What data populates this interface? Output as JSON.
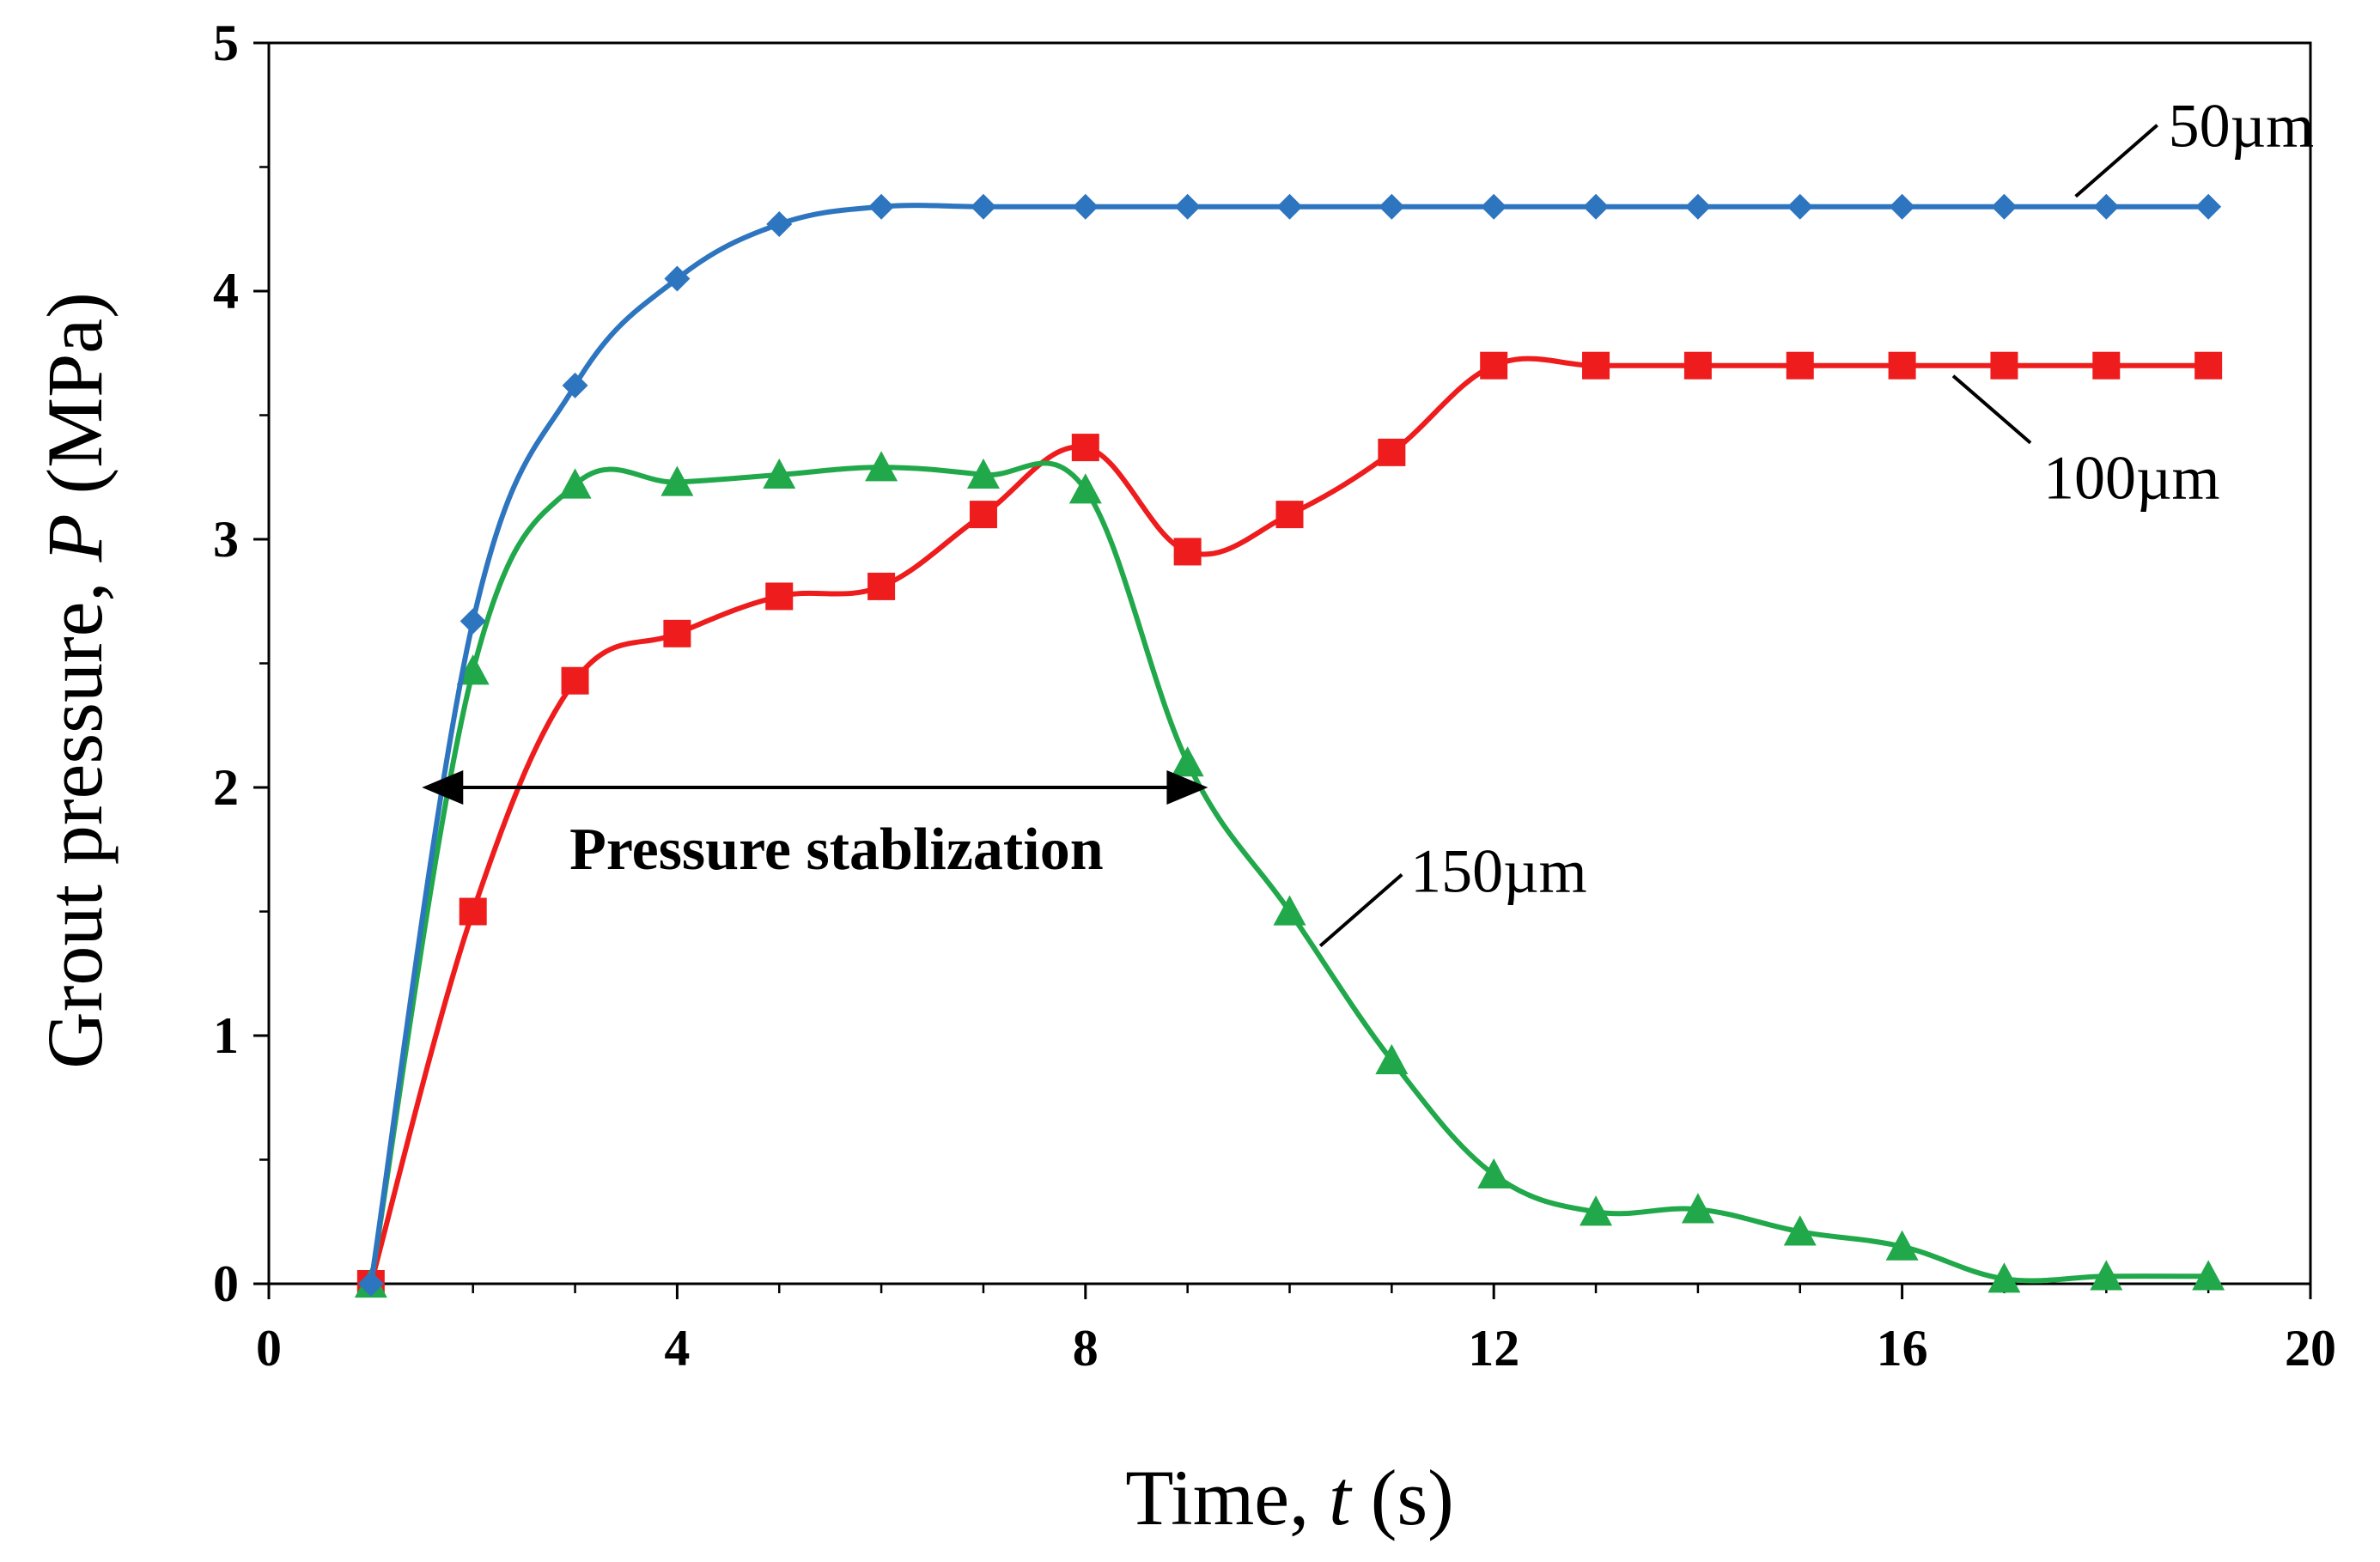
{
  "chart_data": {
    "type": "line",
    "title": "",
    "xlabel_parts": [
      "Time, ",
      "t",
      " (s)"
    ],
    "ylabel_parts": [
      "Grout pressure, ",
      "P",
      " (MPa)"
    ],
    "xlim": [
      0,
      20
    ],
    "ylim": [
      0,
      5
    ],
    "xticks": [
      0,
      4,
      8,
      12,
      16,
      20
    ],
    "yticks": [
      0,
      1,
      2,
      3,
      4,
      5
    ],
    "xtick_labels": [
      "0",
      "4",
      "8",
      "12",
      "16",
      "20"
    ],
    "ytick_labels": [
      "0",
      "1",
      "2",
      "3",
      "4",
      "5"
    ],
    "grid": false,
    "legend": "inline labels",
    "series": [
      {
        "name": "50µm",
        "color": "#2e75c0",
        "marker": "diamond",
        "x": [
          1,
          2,
          3,
          4,
          5,
          6,
          7,
          8,
          9,
          10,
          11,
          12,
          13,
          14,
          15,
          16,
          17,
          18,
          19
        ],
        "values": [
          0,
          2.67,
          3.62,
          4.05,
          4.27,
          4.34,
          4.34,
          4.34,
          4.34,
          4.34,
          4.34,
          4.34,
          4.34,
          4.34,
          4.34,
          4.34,
          4.34,
          4.34,
          4.34
        ]
      },
      {
        "name": "100µm",
        "color": "#ee1c1c",
        "marker": "square",
        "x": [
          1,
          2,
          3,
          4,
          5,
          6,
          7,
          8,
          9,
          10,
          11,
          12,
          13,
          14,
          15,
          16,
          17,
          18,
          19
        ],
        "values": [
          0,
          1.5,
          2.43,
          2.62,
          2.77,
          2.81,
          3.1,
          3.37,
          2.95,
          3.1,
          3.35,
          3.7,
          3.7,
          3.7,
          3.7,
          3.7,
          3.7,
          3.7,
          3.7
        ]
      },
      {
        "name": "150µm",
        "color": "#21a84a",
        "marker": "triangle",
        "x": [
          1,
          2,
          3,
          4,
          5,
          6,
          7,
          8,
          9,
          10,
          11,
          12,
          13,
          14,
          15,
          16,
          17,
          18,
          19
        ],
        "values": [
          0,
          2.47,
          3.22,
          3.23,
          3.26,
          3.29,
          3.26,
          3.2,
          2.1,
          1.5,
          0.9,
          0.44,
          0.29,
          0.3,
          0.21,
          0.15,
          0.02,
          0.03,
          0.03
        ]
      }
    ],
    "series_labels": [
      {
        "text": "50µm",
        "series": 0,
        "leader_x": 17.7
      },
      {
        "text": "100µm",
        "series": 1,
        "leader_x": 16.5
      },
      {
        "text": "150µm",
        "series": 2,
        "leader_x": 10.3
      }
    ],
    "annotation": {
      "text": "Pressure stablization",
      "arrow_from_x": 1.5,
      "arrow_to_x": 9.2,
      "arrow_y": 2.0
    }
  }
}
